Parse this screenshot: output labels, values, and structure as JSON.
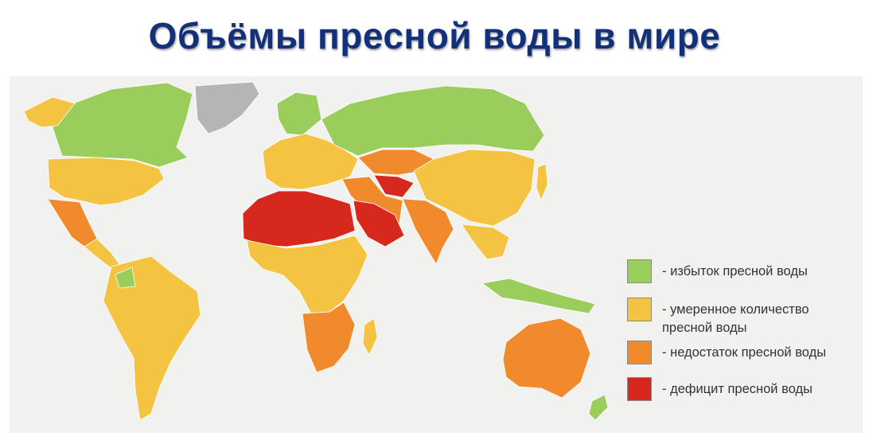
{
  "title": "Объёмы пресной воды в мире",
  "colors": {
    "surplus": "#9acd5b",
    "moderate": "#f4c342",
    "shortage": "#f08a2d",
    "deficit": "#d7281e",
    "no_data": "#b5b5b5",
    "title": "#13307a"
  },
  "legend": {
    "items": [
      {
        "label": "- избыток пресной воды",
        "category": "surplus",
        "color": "#9acd5b"
      },
      {
        "label": "- умеренное количество\nпресной воды",
        "category": "moderate",
        "color": "#f4c342"
      },
      {
        "label": "- недостаток пресной воды",
        "category": "shortage",
        "color": "#f08a2d"
      },
      {
        "label": "- дефицит пресной воды",
        "category": "deficit",
        "color": "#d7281e"
      }
    ]
  },
  "regions": [
    {
      "name": "Greenland",
      "category": "no_data"
    },
    {
      "name": "Canada",
      "category": "surplus"
    },
    {
      "name": "Alaska",
      "category": "moderate"
    },
    {
      "name": "United States",
      "category": "moderate"
    },
    {
      "name": "Mexico",
      "category": "shortage"
    },
    {
      "name": "Central America",
      "category": "moderate"
    },
    {
      "name": "South America",
      "category": "moderate"
    },
    {
      "name": "Guyanas",
      "category": "surplus"
    },
    {
      "name": "Northern Europe",
      "category": "surplus"
    },
    {
      "name": "Europe",
      "category": "moderate"
    },
    {
      "name": "Russia",
      "category": "surplus"
    },
    {
      "name": "Kazakhstan",
      "category": "shortage"
    },
    {
      "name": "Central Asia",
      "category": "deficit"
    },
    {
      "name": "China",
      "category": "moderate"
    },
    {
      "name": "India",
      "category": "shortage"
    },
    {
      "name": "Southeast Asia",
      "category": "moderate"
    },
    {
      "name": "Indonesia",
      "category": "surplus"
    },
    {
      "name": "North Africa",
      "category": "deficit"
    },
    {
      "name": "Arabian Peninsula",
      "category": "deficit"
    },
    {
      "name": "Middle East",
      "category": "shortage"
    },
    {
      "name": "Central Africa",
      "category": "moderate"
    },
    {
      "name": "Southern Africa",
      "category": "shortage"
    },
    {
      "name": "Madagascar",
      "category": "moderate"
    },
    {
      "name": "Australia",
      "category": "shortage"
    },
    {
      "name": "New Zealand",
      "category": "surplus"
    },
    {
      "name": "Japan",
      "category": "moderate"
    }
  ]
}
